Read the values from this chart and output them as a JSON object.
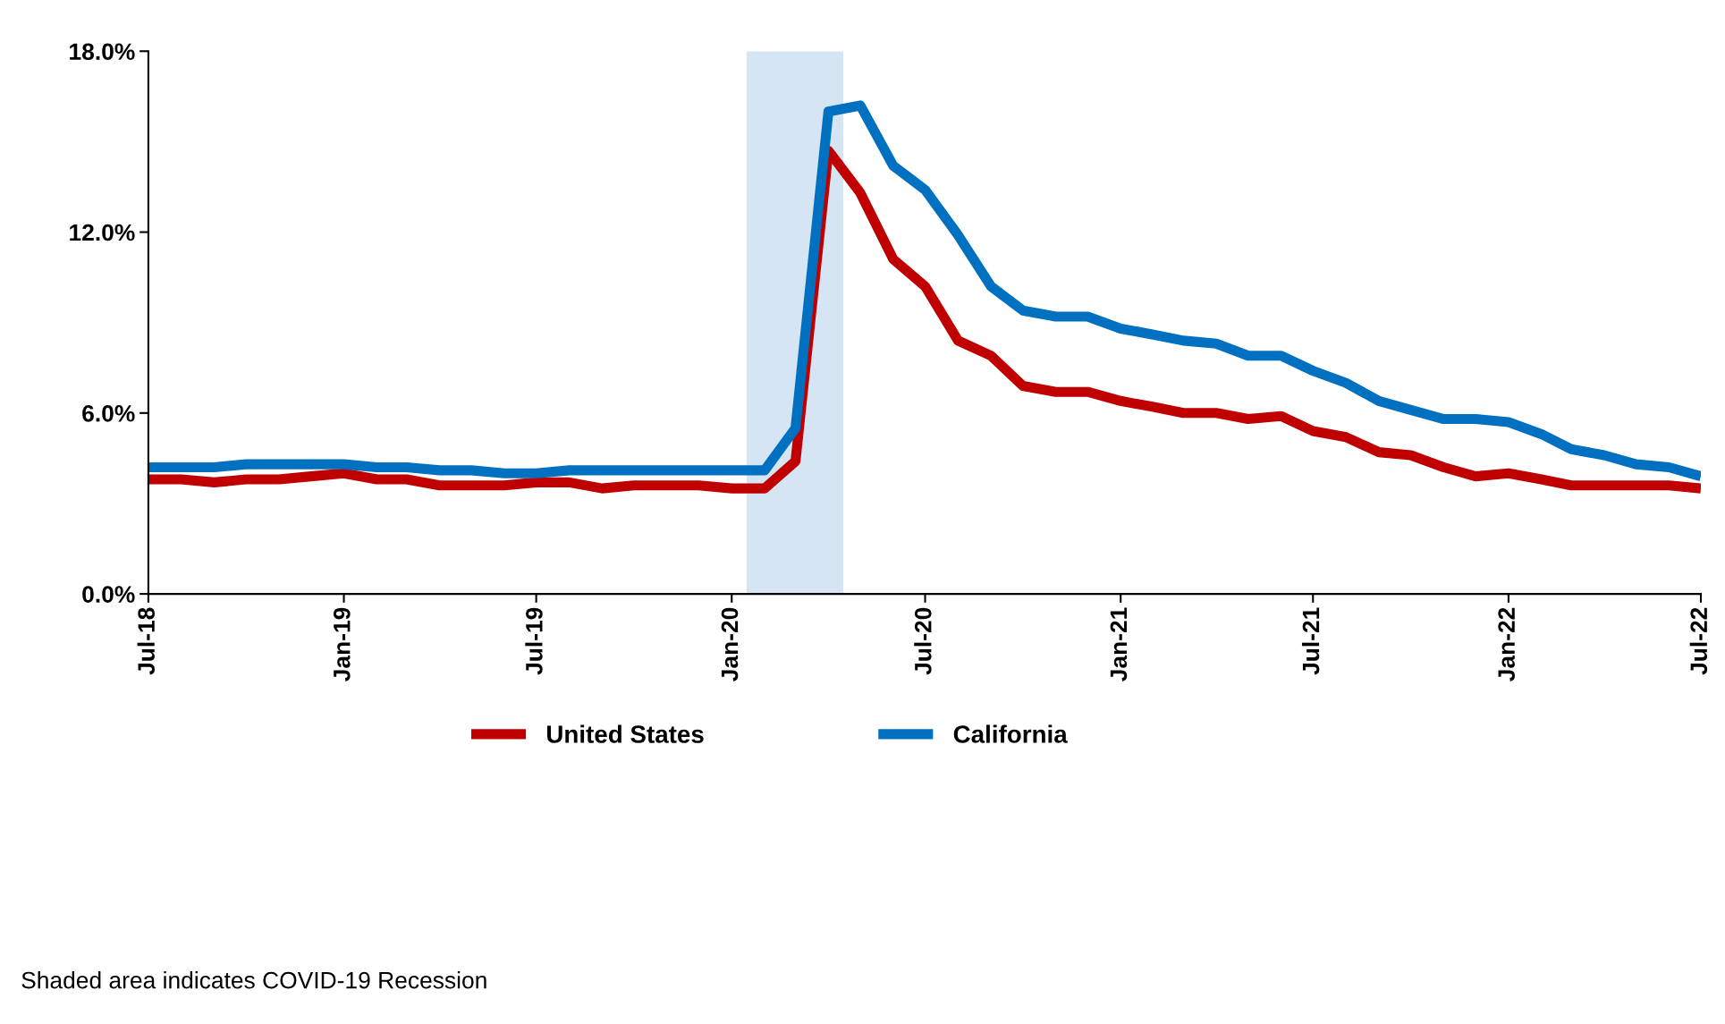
{
  "chart_data": {
    "type": "line",
    "x": [
      "2018-07",
      "2018-08",
      "2018-09",
      "2018-10",
      "2018-11",
      "2018-12",
      "2019-01",
      "2019-02",
      "2019-03",
      "2019-04",
      "2019-05",
      "2019-06",
      "2019-07",
      "2019-08",
      "2019-09",
      "2019-10",
      "2019-11",
      "2019-12",
      "2020-01",
      "2020-02",
      "2020-03",
      "2020-04",
      "2020-05",
      "2020-06",
      "2020-07",
      "2020-08",
      "2020-09",
      "2020-10",
      "2020-11",
      "2020-12",
      "2021-01",
      "2021-02",
      "2021-03",
      "2021-04",
      "2021-05",
      "2021-06",
      "2021-07",
      "2021-08",
      "2021-09",
      "2021-10",
      "2021-11",
      "2021-12",
      "2022-01",
      "2022-02",
      "2022-03",
      "2022-04",
      "2022-05",
      "2022-06",
      "2022-07"
    ],
    "series": [
      {
        "name": "United States",
        "color": "#c00000",
        "values": [
          3.8,
          3.8,
          3.7,
          3.8,
          3.8,
          3.9,
          4.0,
          3.8,
          3.8,
          3.6,
          3.6,
          3.6,
          3.7,
          3.7,
          3.5,
          3.6,
          3.6,
          3.6,
          3.5,
          3.5,
          4.4,
          14.7,
          13.3,
          11.1,
          10.2,
          8.4,
          7.9,
          6.9,
          6.7,
          6.7,
          6.4,
          6.2,
          6.0,
          6.0,
          5.8,
          5.9,
          5.4,
          5.2,
          4.7,
          4.6,
          4.2,
          3.9,
          4.0,
          3.8,
          3.6,
          3.6,
          3.6,
          3.6,
          3.5
        ]
      },
      {
        "name": "California",
        "color": "#0070c0",
        "values": [
          4.2,
          4.2,
          4.2,
          4.3,
          4.3,
          4.3,
          4.3,
          4.2,
          4.2,
          4.1,
          4.1,
          4.0,
          4.0,
          4.1,
          4.1,
          4.1,
          4.1,
          4.1,
          4.1,
          4.1,
          5.5,
          16.0,
          16.2,
          14.2,
          13.4,
          11.9,
          10.2,
          9.4,
          9.2,
          9.2,
          8.8,
          8.6,
          8.4,
          8.3,
          7.9,
          7.9,
          7.4,
          7.0,
          6.4,
          6.1,
          5.8,
          5.8,
          5.7,
          5.3,
          4.8,
          4.6,
          4.3,
          4.2,
          3.9
        ]
      }
    ],
    "xlim": [
      "2018-07",
      "2022-07"
    ],
    "xticks": [
      {
        "value": "2018-07",
        "label": "Jul-18"
      },
      {
        "value": "2019-01",
        "label": "Jan-19"
      },
      {
        "value": "2019-07",
        "label": "Jul-19"
      },
      {
        "value": "2020-01",
        "label": "Jan-20"
      },
      {
        "value": "2020-07",
        "label": "Jul-20"
      },
      {
        "value": "2021-01",
        "label": "Jan-21"
      },
      {
        "value": "2021-07",
        "label": "Jul-21"
      },
      {
        "value": "2022-01",
        "label": "Jan-22"
      },
      {
        "value": "2022-07",
        "label": "Jul-22"
      }
    ],
    "ylim": [
      0,
      18
    ],
    "yticks": [
      {
        "value": 0,
        "label": "0.0%"
      },
      {
        "value": 6,
        "label": "6.0%"
      },
      {
        "value": 12,
        "label": "12.0%"
      },
      {
        "value": 18,
        "label": "18.0%"
      }
    ],
    "bands": [
      {
        "axis": "x",
        "from": "2020-01-15",
        "to": "2020-04-15",
        "color": "#d6e5f4"
      }
    ],
    "legend": "bottom",
    "grid": false,
    "marker": "none",
    "line_style": "solid",
    "annotations": [
      "Shaded area indicates COVID-19 Recession"
    ]
  }
}
